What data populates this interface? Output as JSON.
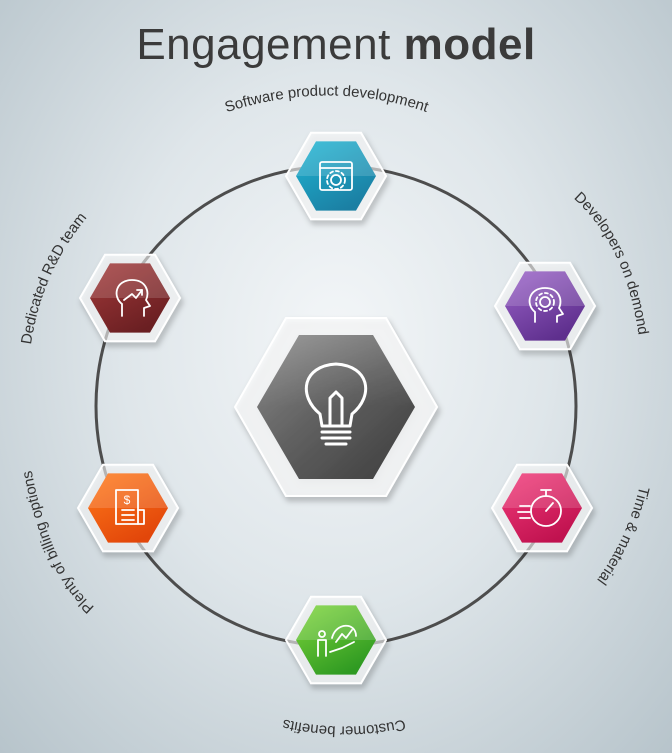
{
  "title": {
    "light": "Engagement",
    "bold": "model"
  },
  "center": {
    "icon": "lightbulb-icon"
  },
  "nodes": [
    {
      "key": "software",
      "label": "Software product development",
      "icon": "browser-gear-icon",
      "colors": [
        "#1fb6d4",
        "#1b7fa3"
      ]
    },
    {
      "key": "developers",
      "label": "Developers on demond",
      "icon": "head-gear-icon",
      "colors": [
        "#9b63c9",
        "#5e2f8d"
      ]
    },
    {
      "key": "time",
      "label": "Time & material",
      "icon": "stopwatch-icon",
      "colors": [
        "#f23a7a",
        "#c0124f"
      ]
    },
    {
      "key": "customer",
      "label": "Customer benefits",
      "icon": "hand-growth-icon",
      "colors": [
        "#7fd63b",
        "#2f9a22"
      ]
    },
    {
      "key": "billing",
      "label": "Plenty of billing options",
      "icon": "invoice-icon",
      "colors": [
        "#ff7a1a",
        "#e2460a"
      ]
    },
    {
      "key": "rnd",
      "label": "Dedicated R&D team",
      "icon": "head-growth-icon",
      "colors": [
        "#a33a3a",
        "#6a1f22"
      ]
    }
  ]
}
